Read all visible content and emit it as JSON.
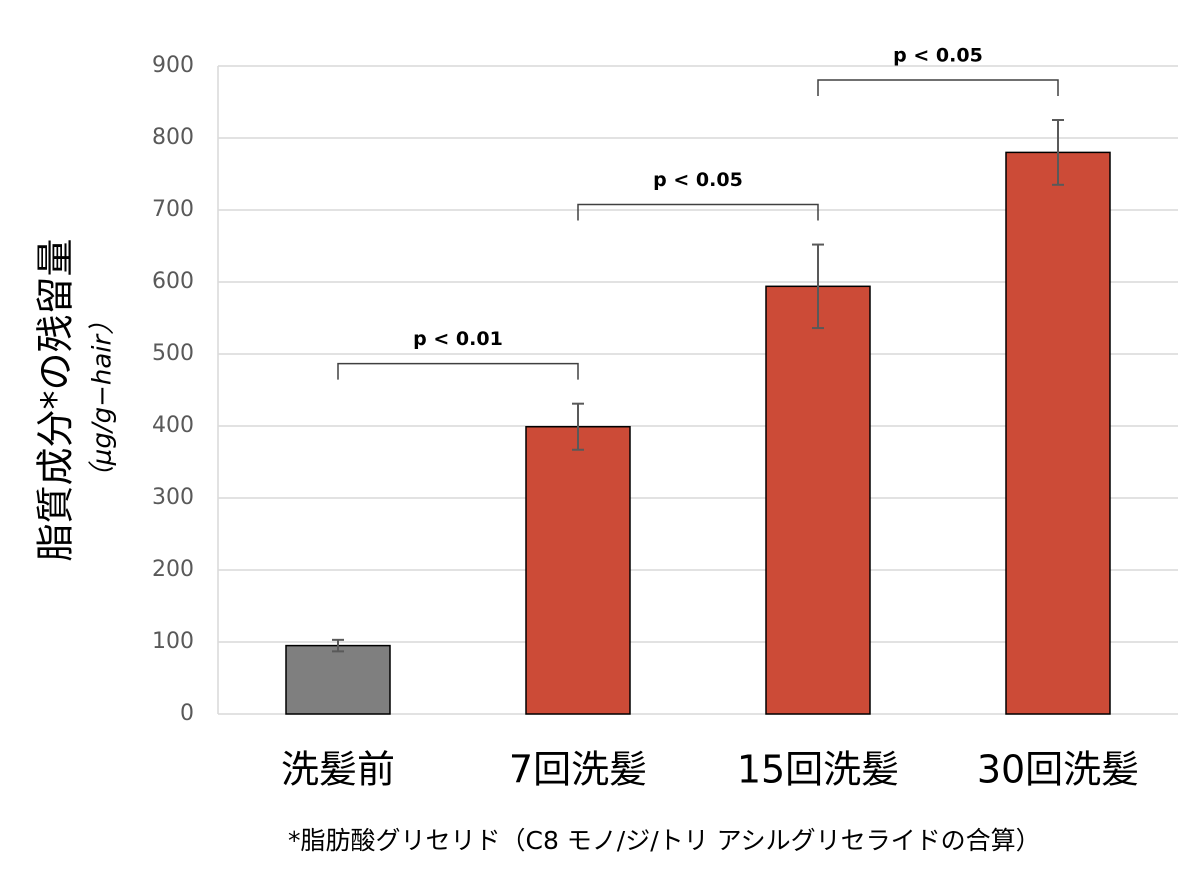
{
  "chart_data": {
    "type": "bar",
    "y_label": "脂質成分*の残留量",
    "y_unit": "（μg/g−hair）",
    "footnote": "*脂肪酸グリセリド（C8 モノ/ジ/トリ アシルグリセライドの合算）",
    "categories": [
      "洗髪前",
      "7回洗髪",
      "15回洗髪",
      "30回洗髪"
    ],
    "values": [
      95,
      399,
      594,
      780
    ],
    "errors": [
      8,
      32,
      58,
      45
    ],
    "colors": [
      "#7f7f7f",
      "#cc4b37",
      "#cc4b37",
      "#cc4b37"
    ],
    "ylim": [
      0,
      900
    ],
    "yticks": [
      0,
      100,
      200,
      300,
      400,
      500,
      600,
      700,
      800,
      900
    ],
    "grid": true,
    "annotations": [
      {
        "text": "p < 0.01",
        "between": [
          "洗髪前",
          "7回洗髪"
        ]
      },
      {
        "text": "p < 0.05",
        "between": [
          "7回洗髪",
          "15回洗髪"
        ]
      },
      {
        "text": "p < 0.05",
        "between": [
          "15回洗髪",
          "30回洗髪"
        ]
      }
    ]
  }
}
